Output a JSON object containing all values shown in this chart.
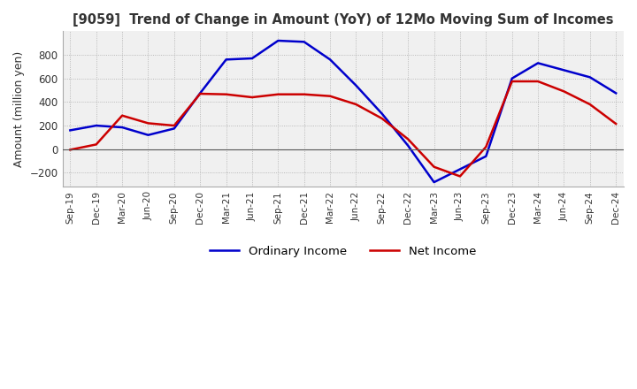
{
  "title": "[9059]  Trend of Change in Amount (YoY) of 12Mo Moving Sum of Incomes",
  "ylabel": "Amount (million yen)",
  "ylim": [
    -320,
    1000
  ],
  "yticks": [
    -200,
    0,
    200,
    400,
    600,
    800
  ],
  "background_color": "#ffffff",
  "plot_bg_color": "#f0f0f0",
  "grid_color": "#aaaaaa",
  "ordinary_income_color": "#0000cc",
  "net_income_color": "#cc0000",
  "x_labels": [
    "Sep-19",
    "Dec-19",
    "Mar-20",
    "Jun-20",
    "Sep-20",
    "Dec-20",
    "Mar-21",
    "Jun-21",
    "Sep-21",
    "Dec-21",
    "Mar-22",
    "Jun-22",
    "Sep-22",
    "Dec-22",
    "Mar-23",
    "Jun-23",
    "Sep-23",
    "Dec-23",
    "Mar-24",
    "Jun-24",
    "Sep-24",
    "Dec-24"
  ],
  "ordinary_income": [
    160,
    200,
    185,
    120,
    175,
    475,
    760,
    770,
    920,
    910,
    760,
    540,
    300,
    30,
    -280,
    -170,
    -60,
    600,
    730,
    670,
    610,
    475
  ],
  "net_income": [
    -5,
    40,
    285,
    220,
    200,
    470,
    465,
    440,
    465,
    465,
    450,
    380,
    260,
    85,
    -150,
    -230,
    20,
    575,
    575,
    490,
    380,
    215
  ]
}
